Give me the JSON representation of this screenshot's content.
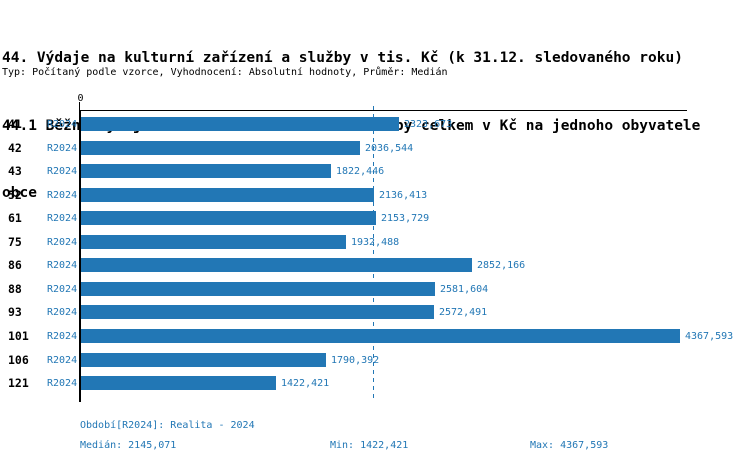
{
  "title": {
    "line1": "44. Výdaje na kulturní zařízení a služby v tis. Kč (k 31.12. sledovaného roku)",
    "line2": "44.1 Běžné výdaje na kulturní zařízení a služby celkem v Kč na jednoho obyvatele",
    "line3": "obce"
  },
  "meta": "Typ: Počítaný podle vzorce, Vyhodnocení: Absolutní hodnoty, Průměr: Medián",
  "colors": {
    "bar": "#2277b5",
    "median_line": "#2277b5",
    "blue_text": "#2277b5",
    "axis": "#000000"
  },
  "chart_data": {
    "type": "bar",
    "orientation": "horizontal",
    "origin_tick_label": "0",
    "categories": [
      "41",
      "42",
      "43",
      "52",
      "61",
      "75",
      "86",
      "88",
      "93",
      "101",
      "106",
      "121"
    ],
    "series": [
      {
        "name": "R2024",
        "values": [
          2323.673,
          2036.544,
          1822.446,
          2136.413,
          2153.729,
          1932.488,
          2852.166,
          2581.604,
          2572.491,
          4367.593,
          1790.392,
          1422.421
        ],
        "value_labels": [
          "2323,673",
          "2036,544",
          "1822,446",
          "2136,413",
          "2153,729",
          "1932,488",
          "2852,166",
          "2581,604",
          "2572,491",
          "4367,593",
          "1790,392",
          "1422,421"
        ]
      }
    ],
    "median": {
      "value": 2145.071,
      "label": "2145,071"
    },
    "xlim": [
      0,
      4421
    ],
    "grid": false,
    "legend_position": "none"
  },
  "footer": {
    "period": "Období[R2024]: Realita - 2024",
    "median": "Medián: 2145,071",
    "min": "Min: 1422,421",
    "max": "Max: 4367,593"
  }
}
